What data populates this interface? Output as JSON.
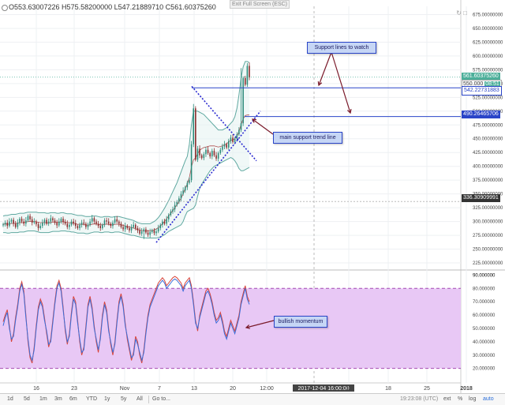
{
  "header": {
    "ohlc": "O553.63007226 H575.58200000 L547.21889710 C561.60375260",
    "exit_fullscreen": "Exit Full Screen (ESC)",
    "controls": "↻ □"
  },
  "callouts": {
    "support_lines": "Support lines to watch",
    "trend_line": "main support trend line",
    "momentum": "bullish momentum"
  },
  "price_tags": {
    "current": "561.60375260",
    "current_sub": "550.000",
    "countdown": "08:51",
    "support_1": "542.22731883",
    "support_2": "490.26465706",
    "support_3": "336.30909991"
  },
  "toolbar": {
    "ranges": [
      "1d",
      "5d",
      "1m",
      "3m",
      "6m",
      "YTD",
      "1y",
      "5y",
      "All",
      "Go to..."
    ],
    "clock": "19:23:08 (UTC)",
    "options": [
      "ext",
      "%",
      "log",
      "auto"
    ]
  },
  "colors": {
    "up": "#2b8b7a",
    "down": "#8a2a2a",
    "bollinger": "#5fa8a0",
    "trend": "#2a2ad0",
    "support": "#2a45c8",
    "rsi_fill": "#e8c8f5",
    "rsi_line1": "#d9443a",
    "rsi_line2": "#3a6dd9",
    "rsi_bands": "#a64ab3",
    "annotation_arrow": "#7a1a2a"
  },
  "chart_data": [
    {
      "type": "candlestick",
      "title": "",
      "x_tick_labels": [
        "16",
        "23",
        "Nov",
        "7",
        "13",
        "20",
        "12:00",
        "2017-12-04 16:00:00",
        "11",
        "18",
        "25",
        "2018"
      ],
      "y_tick_labels": [
        "225.00000000",
        "250.00000000",
        "275.00000000",
        "300.00000000",
        "325.00000000",
        "350.00000000",
        "375.00000000",
        "400.00000000",
        "425.00000000",
        "450.00000000",
        "475.00000000",
        "500.00000000",
        "525.00000000",
        "550.00000000",
        "575.00000000",
        "600.00000000",
        "625.00000000",
        "650.00000000",
        "675.00000000"
      ],
      "ylim": [
        215,
        690
      ],
      "grid": true,
      "close": [
        295,
        298,
        292,
        300,
        303,
        296,
        290,
        298,
        305,
        300,
        296,
        302,
        310,
        304,
        298,
        300,
        295,
        288,
        292,
        298,
        303,
        296,
        300,
        306,
        302,
        298,
        293,
        300,
        305,
        299,
        296,
        290,
        294,
        300,
        297,
        292,
        288,
        294,
        298,
        296,
        290,
        294,
        300,
        306,
        300,
        296,
        292,
        288,
        294,
        302,
        300,
        296,
        292,
        298,
        304,
        300,
        296,
        290,
        286,
        292,
        288,
        284,
        290,
        294,
        288,
        284,
        278,
        282,
        286,
        280,
        276,
        281,
        284,
        279,
        282,
        288,
        294,
        300,
        296,
        304,
        312,
        318,
        322,
        330,
        336,
        342,
        350,
        356,
        362,
        370,
        375,
        440,
        505,
        412,
        432,
        420,
        415,
        422,
        430,
        424,
        418,
        428,
        420,
        414,
        424,
        430,
        436,
        440,
        434,
        446,
        452,
        444,
        450,
        458,
        466,
        478,
        560,
        548,
        582,
        561
      ],
      "bollinger_upper": [
        310,
        311,
        311,
        312,
        313,
        313,
        313,
        314,
        315,
        315,
        315,
        316,
        317,
        317,
        317,
        317,
        317,
        316,
        316,
        316,
        316,
        315,
        315,
        316,
        316,
        316,
        315,
        315,
        316,
        316,
        315,
        314,
        314,
        314,
        313,
        312,
        311,
        311,
        311,
        310,
        309,
        309,
        309,
        310,
        310,
        310,
        309,
        308,
        308,
        309,
        309,
        309,
        308,
        308,
        309,
        309,
        309,
        308,
        307,
        306,
        305,
        304,
        303,
        302,
        300,
        298,
        297,
        296,
        296,
        296,
        296,
        296,
        298,
        300,
        303,
        307,
        312,
        318,
        324,
        331,
        338,
        346,
        354,
        362,
        370,
        380,
        390,
        400,
        410,
        418,
        440,
        475,
        500,
        500,
        500,
        498,
        496,
        494,
        490,
        486,
        482,
        478,
        474,
        470,
        466,
        466,
        466,
        468,
        470,
        474,
        478,
        482,
        490,
        505,
        530,
        560,
        580,
        590,
        590,
        588
      ],
      "bollinger_lower": [
        280,
        280,
        279,
        279,
        280,
        280,
        280,
        280,
        281,
        281,
        281,
        282,
        283,
        283,
        283,
        283,
        282,
        281,
        280,
        280,
        280,
        280,
        280,
        281,
        282,
        282,
        282,
        282,
        283,
        283,
        283,
        282,
        282,
        281,
        281,
        280,
        279,
        279,
        279,
        279,
        278,
        278,
        279,
        280,
        281,
        281,
        281,
        280,
        280,
        281,
        281,
        281,
        280,
        280,
        281,
        281,
        281,
        280,
        279,
        278,
        277,
        276,
        275,
        275,
        274,
        273,
        272,
        271,
        271,
        270,
        270,
        270,
        270,
        270,
        270,
        271,
        272,
        274,
        276,
        279,
        282,
        284,
        286,
        288,
        290,
        292,
        294,
        300,
        310,
        318,
        320,
        322,
        324,
        330,
        346,
        360,
        368,
        374,
        380,
        386,
        392,
        396,
        400,
        402,
        404,
        406,
        408,
        410,
        412,
        414,
        416,
        414,
        410,
        404,
        396,
        392,
        392,
        394,
        396,
        398
      ],
      "horizontal_lines": [
        542.2273,
        490.2647,
        336.3091,
        561.6038
      ],
      "annotations": [
        "Support lines to watch",
        "main support trend line"
      ]
    },
    {
      "type": "line",
      "title": "",
      "y_tick_labels": [
        "20.000000",
        "30.000000",
        "40.000000",
        "50.000000",
        "60.000000",
        "70.000000",
        "80.000000",
        "90.000000"
      ],
      "ylim": [
        5,
        92
      ],
      "band_levels": [
        20,
        80
      ],
      "series": [
        {
          "values": [
            55,
            60,
            64,
            52,
            40,
            46,
            58,
            68,
            80,
            85,
            78,
            60,
            40,
            28,
            24,
            36,
            52,
            66,
            72,
            68,
            58,
            46,
            36,
            42,
            56,
            70,
            82,
            86,
            80,
            66,
            48,
            38,
            46,
            62,
            74,
            70,
            56,
            40,
            30,
            36,
            52,
            68,
            74,
            66,
            52,
            40,
            32,
            44,
            60,
            70,
            64,
            50,
            38,
            30,
            40,
            56,
            70,
            76,
            68,
            54,
            42,
            34,
            26,
            32,
            44,
            40,
            30,
            24,
            34,
            48,
            60,
            68,
            72,
            76,
            80,
            84,
            86,
            88,
            86,
            82,
            84,
            86,
            88,
            89,
            88,
            86,
            84,
            80,
            84,
            86,
            88,
            82,
            70,
            56,
            48,
            60,
            66,
            72,
            78,
            80,
            76,
            70,
            62,
            56,
            58,
            62,
            56,
            48,
            44,
            50,
            56,
            52,
            48,
            54,
            60,
            70,
            76,
            82,
            74,
            70
          ]
        },
        {
          "values": [
            52,
            58,
            62,
            50,
            42,
            44,
            56,
            66,
            78,
            83,
            76,
            58,
            42,
            30,
            26,
            34,
            50,
            64,
            70,
            66,
            56,
            48,
            38,
            40,
            54,
            68,
            80,
            84,
            78,
            64,
            50,
            40,
            44,
            60,
            72,
            68,
            54,
            42,
            32,
            34,
            50,
            66,
            72,
            64,
            50,
            42,
            34,
            42,
            58,
            68,
            62,
            48,
            40,
            32,
            38,
            54,
            68,
            74,
            66,
            52,
            44,
            36,
            28,
            30,
            42,
            38,
            32,
            26,
            32,
            46,
            58,
            66,
            70,
            74,
            78,
            82,
            84,
            86,
            84,
            80,
            82,
            84,
            86,
            87,
            86,
            84,
            82,
            78,
            82,
            84,
            86,
            80,
            68,
            54,
            50,
            58,
            64,
            70,
            76,
            78,
            74,
            68,
            60,
            54,
            56,
            60,
            54,
            46,
            42,
            48,
            54,
            50,
            46,
            52,
            58,
            68,
            74,
            80,
            72,
            68
          ]
        }
      ],
      "annotations": [
        "bullish momentum"
      ]
    }
  ]
}
